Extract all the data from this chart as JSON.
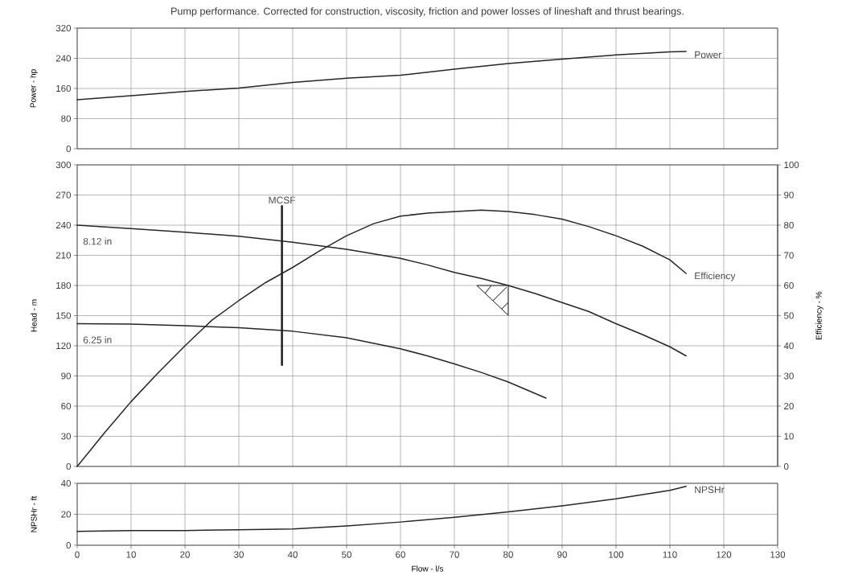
{
  "chart_data": [
    {
      "type": "line",
      "title": "Pump performance. Corrected for construction, viscosity, friction and power losses of lineshaft and thrust bearings.",
      "ylabel": "Power - hp",
      "xlim": [
        0,
        130
      ],
      "xticks": [
        0,
        10,
        20,
        30,
        40,
        50,
        60,
        70,
        80,
        90,
        100,
        110,
        120,
        130
      ],
      "ylim": [
        0,
        320
      ],
      "yticks": [
        0,
        80,
        160,
        240,
        320
      ],
      "tick_labels": "y",
      "grid": true,
      "series": [
        {
          "name": "Power",
          "color": "#262626",
          "x": [
            0,
            10,
            20,
            30,
            40,
            50,
            60,
            70,
            80,
            90,
            100,
            110,
            113
          ],
          "values": [
            130,
            141,
            152,
            161,
            176,
            187,
            195,
            211,
            226,
            238,
            249,
            257,
            258
          ]
        }
      ]
    },
    {
      "type": "line",
      "ylabel": "Head - m",
      "y2label": "Efficiency - %",
      "xlim": [
        0,
        130
      ],
      "xticks": [
        0,
        10,
        20,
        30,
        40,
        50,
        60,
        70,
        80,
        90,
        100,
        110,
        120,
        130
      ],
      "ylim": [
        0,
        300
      ],
      "yticks": [
        0,
        30,
        60,
        90,
        120,
        150,
        180,
        210,
        240,
        270,
        300
      ],
      "y2lim": [
        0,
        100
      ],
      "y2ticks": [
        0,
        10,
        20,
        30,
        40,
        50,
        60,
        70,
        80,
        90,
        100
      ],
      "tick_labels": "y",
      "grid": true,
      "series": [
        {
          "name": "8.12 in",
          "color": "#262626",
          "x": [
            0,
            10,
            20,
            30,
            40,
            50,
            60,
            65,
            70,
            75,
            80,
            85,
            90,
            95,
            100,
            105,
            110,
            113
          ],
          "values": [
            240,
            236.5,
            233,
            229,
            223,
            216,
            207,
            200.5,
            193,
            187,
            180,
            172,
            163,
            154,
            142,
            131,
            119,
            110
          ]
        },
        {
          "name": "6.25 in",
          "color": "#262626",
          "x": [
            0,
            10,
            20,
            30,
            40,
            50,
            60,
            65,
            70,
            75,
            80,
            87
          ],
          "values": [
            142,
            141.5,
            140,
            138,
            134.5,
            128,
            117,
            110,
            102,
            93.5,
            84,
            68
          ]
        },
        {
          "name": "Efficiency",
          "color": "#262626",
          "axis": "y2",
          "x": [
            0,
            5,
            10,
            15,
            20,
            25,
            30,
            35,
            40,
            45,
            50,
            55,
            60,
            65,
            70,
            75,
            80,
            85,
            90,
            95,
            100,
            105,
            110,
            113
          ],
          "values": [
            0,
            11,
            21.5,
            31,
            40,
            48.5,
            55,
            61,
            66,
            71.5,
            76.5,
            80.5,
            83,
            84,
            84.5,
            85,
            84.5,
            83.5,
            82,
            79.5,
            76.5,
            73,
            68.5,
            64
          ]
        },
        {
          "name": "MCSF",
          "color": "#262626",
          "x": [
            38,
            38
          ],
          "values": [
            101,
            259
          ]
        }
      ]
    },
    {
      "type": "line",
      "xlabel": "Flow - l/s",
      "ylabel": "NPSHr - ft",
      "xlim": [
        0,
        130
      ],
      "xticks": [
        0,
        10,
        20,
        30,
        40,
        50,
        60,
        70,
        80,
        90,
        100,
        110,
        120,
        130
      ],
      "ylim": [
        0,
        40
      ],
      "yticks": [
        0,
        20,
        40
      ],
      "grid": true,
      "series": [
        {
          "name": "NPSHr",
          "color": "#262626",
          "x": [
            0,
            10,
            20,
            30,
            40,
            50,
            60,
            70,
            80,
            90,
            100,
            110,
            113
          ],
          "values": [
            9,
            9.5,
            9.5,
            10,
            10.5,
            12.5,
            15,
            18,
            21.5,
            25.5,
            30,
            35.5,
            38
          ]
        }
      ]
    }
  ]
}
